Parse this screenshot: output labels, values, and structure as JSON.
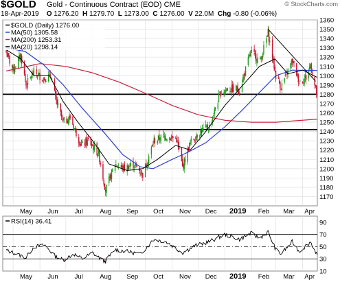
{
  "header": {
    "symbol": "$GOLD",
    "description": "Gold - Continuous Contract (EOD)",
    "exchange": "CME",
    "date": "18-Apr-2019",
    "quote": {
      "o_label": "O",
      "o": "1276.20",
      "h_label": "H",
      "h": "1279.70",
      "l_label": "L",
      "l": "1273.00",
      "c_label": "C",
      "c": "1276.00",
      "v_label": "V",
      "v": "22.0M",
      "chg_label": "Chg",
      "chg": "-0.80 (-0.06%)"
    },
    "logo": "© StockCharts.com"
  },
  "chart_data": [
    {
      "type": "candlestick",
      "title": "",
      "legend": [
        {
          "label": "$GOLD (Daily) 1276.00",
          "color": "#000000"
        },
        {
          "label": "MA(50) 1305.58",
          "color": "#2b3fd6"
        },
        {
          "label": "MA(200) 1253.31",
          "color": "#c8203c"
        },
        {
          "label": "MA(20) 1298.14",
          "color": "#000000"
        }
      ],
      "legend_position": "top-left",
      "ylim": [
        1160,
        1360
      ],
      "y_ticks": [
        1170,
        1180,
        1190,
        1200,
        1210,
        1220,
        1230,
        1240,
        1250,
        1260,
        1270,
        1280,
        1290,
        1300,
        1310,
        1320,
        1330,
        1340,
        1350,
        1360
      ],
      "x_ticks": [
        "May",
        "Jun",
        "Jul",
        "Aug",
        "Sep",
        "Oct",
        "Nov",
        "Dec",
        "2019",
        "Feb",
        "Mar",
        "Apr"
      ],
      "grid": true,
      "up_color": "#1a9a1a",
      "down_color": "#c8102e",
      "close_path": [
        {
          "x": "2018-04-23",
          "y": 1325
        },
        {
          "x": "2018-05-01",
          "y": 1306
        },
        {
          "x": "2018-05-10",
          "y": 1322
        },
        {
          "x": "2018-05-16",
          "y": 1290
        },
        {
          "x": "2018-05-25",
          "y": 1304
        },
        {
          "x": "2018-06-05",
          "y": 1297
        },
        {
          "x": "2018-06-14",
          "y": 1300
        },
        {
          "x": "2018-06-19",
          "y": 1275
        },
        {
          "x": "2018-06-28",
          "y": 1250
        },
        {
          "x": "2018-07-06",
          "y": 1255
        },
        {
          "x": "2018-07-19",
          "y": 1225
        },
        {
          "x": "2018-07-27",
          "y": 1230
        },
        {
          "x": "2018-08-08",
          "y": 1216
        },
        {
          "x": "2018-08-16",
          "y": 1177
        },
        {
          "x": "2018-08-27",
          "y": 1205
        },
        {
          "x": "2018-09-06",
          "y": 1200
        },
        {
          "x": "2018-09-17",
          "y": 1205
        },
        {
          "x": "2018-09-28",
          "y": 1194
        },
        {
          "x": "2018-10-11",
          "y": 1230
        },
        {
          "x": "2018-10-24",
          "y": 1235
        },
        {
          "x": "2018-11-06",
          "y": 1232
        },
        {
          "x": "2018-11-13",
          "y": 1202
        },
        {
          "x": "2018-11-22",
          "y": 1228
        },
        {
          "x": "2018-12-03",
          "y": 1240
        },
        {
          "x": "2018-12-14",
          "y": 1245
        },
        {
          "x": "2018-12-27",
          "y": 1282
        },
        {
          "x": "2019-01-04",
          "y": 1286
        },
        {
          "x": "2019-01-18",
          "y": 1285
        },
        {
          "x": "2019-01-31",
          "y": 1325
        },
        {
          "x": "2019-02-11",
          "y": 1316
        },
        {
          "x": "2019-02-20",
          "y": 1346
        },
        {
          "x": "2019-03-01",
          "y": 1300
        },
        {
          "x": "2019-03-07",
          "y": 1288
        },
        {
          "x": "2019-03-20",
          "y": 1316
        },
        {
          "x": "2019-03-28",
          "y": 1294
        },
        {
          "x": "2019-04-05",
          "y": 1298
        },
        {
          "x": "2019-04-10",
          "y": 1312
        },
        {
          "x": "2019-04-18",
          "y": 1276
        }
      ],
      "ma50_path": [
        {
          "x": "2018-04-23",
          "y": 1330
        },
        {
          "x": "2018-05-15",
          "y": 1326
        },
        {
          "x": "2018-06-05",
          "y": 1312
        },
        {
          "x": "2018-06-28",
          "y": 1290
        },
        {
          "x": "2018-07-20",
          "y": 1265
        },
        {
          "x": "2018-08-15",
          "y": 1238
        },
        {
          "x": "2018-09-05",
          "y": 1215
        },
        {
          "x": "2018-09-25",
          "y": 1202
        },
        {
          "x": "2018-10-10",
          "y": 1200
        },
        {
          "x": "2018-11-01",
          "y": 1210
        },
        {
          "x": "2018-11-20",
          "y": 1218
        },
        {
          "x": "2018-12-10",
          "y": 1228
        },
        {
          "x": "2019-01-01",
          "y": 1245
        },
        {
          "x": "2019-01-20",
          "y": 1262
        },
        {
          "x": "2019-02-10",
          "y": 1282
        },
        {
          "x": "2019-03-01",
          "y": 1300
        },
        {
          "x": "2019-03-20",
          "y": 1306
        },
        {
          "x": "2019-04-18",
          "y": 1305.58
        }
      ],
      "ma200_path": [
        {
          "x": "2018-04-23",
          "y": 1305
        },
        {
          "x": "2018-06-01",
          "y": 1313
        },
        {
          "x": "2018-07-01",
          "y": 1310
        },
        {
          "x": "2018-08-01",
          "y": 1303
        },
        {
          "x": "2018-09-01",
          "y": 1293
        },
        {
          "x": "2018-10-01",
          "y": 1281
        },
        {
          "x": "2018-11-01",
          "y": 1268
        },
        {
          "x": "2018-12-01",
          "y": 1258
        },
        {
          "x": "2019-01-01",
          "y": 1252
        },
        {
          "x": "2019-02-01",
          "y": 1250
        },
        {
          "x": "2019-03-01",
          "y": 1250
        },
        {
          "x": "2019-04-18",
          "y": 1253.31
        }
      ],
      "ma20_path": [
        {
          "x": "2018-04-23",
          "y": 1328
        },
        {
          "x": "2018-05-10",
          "y": 1318
        },
        {
          "x": "2018-05-25",
          "y": 1300
        },
        {
          "x": "2018-06-12",
          "y": 1300
        },
        {
          "x": "2018-06-28",
          "y": 1272
        },
        {
          "x": "2018-07-15",
          "y": 1250
        },
        {
          "x": "2018-08-01",
          "y": 1230
        },
        {
          "x": "2018-08-20",
          "y": 1205
        },
        {
          "x": "2018-09-10",
          "y": 1198
        },
        {
          "x": "2018-09-28",
          "y": 1200
        },
        {
          "x": "2018-10-15",
          "y": 1210
        },
        {
          "x": "2018-11-05",
          "y": 1225
        },
        {
          "x": "2018-11-22",
          "y": 1220
        },
        {
          "x": "2018-12-10",
          "y": 1240
        },
        {
          "x": "2019-01-01",
          "y": 1268
        },
        {
          "x": "2019-01-20",
          "y": 1288
        },
        {
          "x": "2019-02-10",
          "y": 1310
        },
        {
          "x": "2019-02-28",
          "y": 1318
        },
        {
          "x": "2019-03-15",
          "y": 1302
        },
        {
          "x": "2019-04-01",
          "y": 1306
        },
        {
          "x": "2019-04-18",
          "y": 1298.14
        }
      ],
      "horizontal_lines": [
        1280,
        1242
      ],
      "trendline": [
        {
          "x": "2019-02-20",
          "y": 1350
        },
        {
          "x": "2019-04-16",
          "y": 1294
        }
      ]
    },
    {
      "type": "line",
      "title": "",
      "legend": [
        {
          "label": "RSI(14) 36.41",
          "color": "#000000"
        }
      ],
      "legend_position": "top-left",
      "ylim": [
        10,
        100
      ],
      "y_ticks": [
        10,
        30,
        50,
        70,
        90
      ],
      "x_ticks": [
        "May",
        "Jun",
        "Jul",
        "Aug",
        "Sep",
        "Oct",
        "Nov",
        "Dec",
        "2019",
        "Feb",
        "Mar",
        "Apr"
      ],
      "reference_lines": [
        70,
        50,
        30
      ],
      "rsi_path": [
        {
          "x": "2018-04-23",
          "y": 44
        },
        {
          "x": "2018-05-05",
          "y": 38
        },
        {
          "x": "2018-05-16",
          "y": 32
        },
        {
          "x": "2018-05-25",
          "y": 50
        },
        {
          "x": "2018-06-07",
          "y": 52
        },
        {
          "x": "2018-06-18",
          "y": 35
        },
        {
          "x": "2018-06-28",
          "y": 28
        },
        {
          "x": "2018-07-10",
          "y": 38
        },
        {
          "x": "2018-07-20",
          "y": 30
        },
        {
          "x": "2018-08-01",
          "y": 40
        },
        {
          "x": "2018-08-15",
          "y": 25
        },
        {
          "x": "2018-08-27",
          "y": 45
        },
        {
          "x": "2018-09-10",
          "y": 42
        },
        {
          "x": "2018-09-25",
          "y": 38
        },
        {
          "x": "2018-10-11",
          "y": 62
        },
        {
          "x": "2018-10-25",
          "y": 58
        },
        {
          "x": "2018-11-13",
          "y": 40
        },
        {
          "x": "2018-11-28",
          "y": 52
        },
        {
          "x": "2018-12-14",
          "y": 58
        },
        {
          "x": "2019-01-01",
          "y": 70
        },
        {
          "x": "2019-01-18",
          "y": 62
        },
        {
          "x": "2019-01-31",
          "y": 72
        },
        {
          "x": "2019-02-10",
          "y": 64
        },
        {
          "x": "2019-02-20",
          "y": 74
        },
        {
          "x": "2019-03-01",
          "y": 45
        },
        {
          "x": "2019-03-07",
          "y": 38
        },
        {
          "x": "2019-03-20",
          "y": 58
        },
        {
          "x": "2019-03-28",
          "y": 42
        },
        {
          "x": "2019-04-10",
          "y": 58
        },
        {
          "x": "2019-04-18",
          "y": 36.41
        }
      ]
    }
  ],
  "colors": {
    "ma50": "#2b3fd6",
    "ma200": "#c8203c",
    "ma20": "#000000",
    "grid": "#dcdcdc",
    "rsi_fill": "#b08ca0"
  }
}
